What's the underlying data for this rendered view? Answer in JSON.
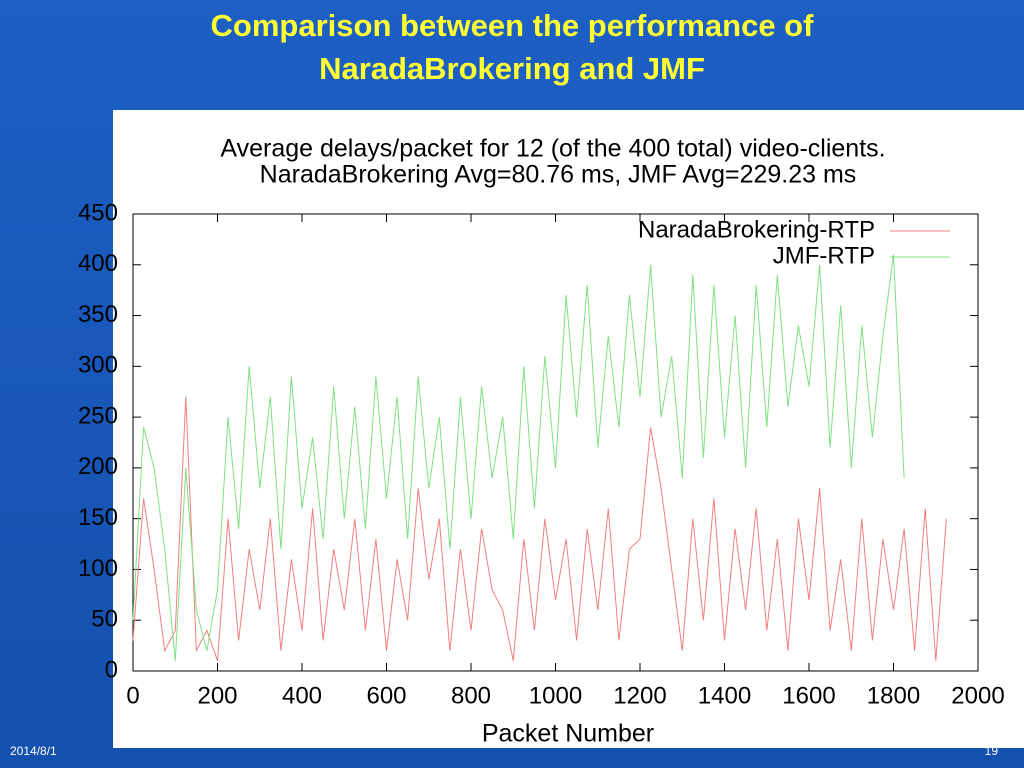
{
  "title": "Comparison between the performance of NaradaBrokering and JMF",
  "footer": {
    "date": "2014/8/1",
    "page": "19"
  },
  "chart_data": {
    "type": "line",
    "title": "Average delays/packet for 12 (of the 400 total) video-clients.",
    "subtitle": "NaradaBrokering Avg=80.76 ms, JMF Avg=229.23 ms",
    "xlabel": "Packet Number",
    "xlim": [
      0,
      2000
    ],
    "ylim": [
      0,
      450
    ],
    "xticks": [
      0,
      200,
      400,
      600,
      800,
      1000,
      1200,
      1400,
      1600,
      1800,
      2000
    ],
    "yticks": [
      0,
      50,
      100,
      150,
      200,
      250,
      300,
      350,
      400,
      450
    ],
    "legend": "upper right",
    "series": [
      {
        "name": "NaradaBrokering-RTP",
        "color": "#f08080",
        "x": [
          0,
          25,
          50,
          75,
          100,
          125,
          150,
          175,
          200,
          225,
          250,
          275,
          300,
          325,
          350,
          375,
          400,
          425,
          450,
          475,
          500,
          525,
          550,
          575,
          600,
          625,
          650,
          675,
          700,
          725,
          750,
          775,
          800,
          825,
          850,
          875,
          900,
          925,
          950,
          975,
          1000,
          1025,
          1050,
          1075,
          1100,
          1125,
          1150,
          1175,
          1200,
          1225,
          1250,
          1275,
          1300,
          1325,
          1350,
          1375,
          1400,
          1425,
          1450,
          1475,
          1500,
          1525,
          1550,
          1575,
          1600,
          1625,
          1650,
          1675,
          1700,
          1725,
          1750,
          1775,
          1800,
          1825,
          1850,
          1875,
          1900,
          1925
        ],
        "values": [
          30,
          170,
          100,
          20,
          40,
          270,
          20,
          40,
          10,
          150,
          30,
          120,
          60,
          150,
          20,
          110,
          40,
          160,
          30,
          120,
          60,
          150,
          40,
          130,
          20,
          110,
          50,
          180,
          90,
          150,
          20,
          120,
          40,
          140,
          80,
          60,
          10,
          130,
          40,
          150,
          70,
          130,
          30,
          140,
          60,
          160,
          30,
          120,
          130,
          240,
          180,
          100,
          20,
          150,
          50,
          170,
          30,
          140,
          60,
          160,
          40,
          130,
          20,
          150,
          70,
          180,
          40,
          110,
          20,
          150,
          30,
          130,
          60,
          140,
          20,
          160,
          10,
          150
        ]
      },
      {
        "name": "JMF-RTP",
        "color": "#80e080",
        "x": [
          0,
          25,
          50,
          75,
          100,
          125,
          150,
          175,
          200,
          225,
          250,
          275,
          300,
          325,
          350,
          375,
          400,
          425,
          450,
          475,
          500,
          525,
          550,
          575,
          600,
          625,
          650,
          675,
          700,
          725,
          750,
          775,
          800,
          825,
          850,
          875,
          900,
          925,
          950,
          975,
          1000,
          1025,
          1050,
          1075,
          1100,
          1125,
          1150,
          1175,
          1200,
          1225,
          1250,
          1275,
          1300,
          1325,
          1350,
          1375,
          1400,
          1425,
          1450,
          1475,
          1500,
          1525,
          1550,
          1575,
          1600,
          1625,
          1650,
          1675,
          1700,
          1725,
          1750,
          1775,
          1800,
          1825
        ],
        "values": [
          50,
          240,
          200,
          120,
          10,
          200,
          60,
          20,
          80,
          250,
          140,
          300,
          180,
          270,
          120,
          290,
          160,
          230,
          130,
          280,
          150,
          260,
          140,
          290,
          170,
          270,
          130,
          290,
          180,
          250,
          120,
          270,
          150,
          280,
          190,
          250,
          130,
          300,
          160,
          310,
          200,
          370,
          250,
          380,
          220,
          330,
          240,
          370,
          270,
          400,
          250,
          310,
          190,
          390,
          210,
          380,
          230,
          350,
          200,
          380,
          240,
          390,
          260,
          340,
          280,
          400,
          220,
          360,
          200,
          340,
          230,
          330,
          410,
          190
        ]
      }
    ]
  }
}
